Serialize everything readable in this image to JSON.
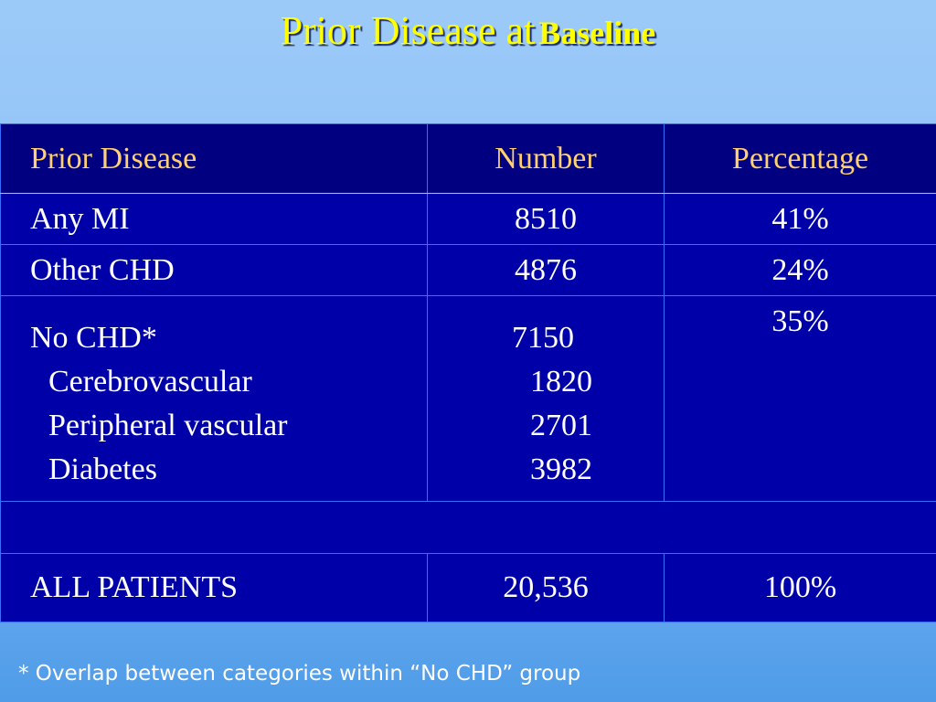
{
  "title": {
    "main": "Prior Disease at",
    "sub": "Baseline"
  },
  "table": {
    "headers": [
      "Prior Disease",
      "Number",
      "Percentage"
    ],
    "rows": {
      "any_mi": {
        "label": "Any MI",
        "number": "8510",
        "pct": "41%"
      },
      "other_chd": {
        "label": "Other CHD",
        "number": "4876",
        "pct": "24%"
      },
      "no_chd": {
        "label": "No CHD*",
        "number": "7150",
        "pct": "35%",
        "sub": [
          {
            "label": "Cerebrovascular",
            "number": "1820"
          },
          {
            "label": "Peripheral vascular",
            "number": "2701"
          },
          {
            "label": "Diabetes",
            "number": "3982"
          }
        ]
      },
      "all": {
        "label": "ALL PATIENTS",
        "number": "20,536",
        "pct": "100%"
      }
    }
  },
  "footnote": "* Overlap between categories within “No CHD” group",
  "colors": {
    "title": "#ffff00",
    "header_text": "#ffd070",
    "table_bg": "#0000a8",
    "header_bg": "#000080"
  }
}
